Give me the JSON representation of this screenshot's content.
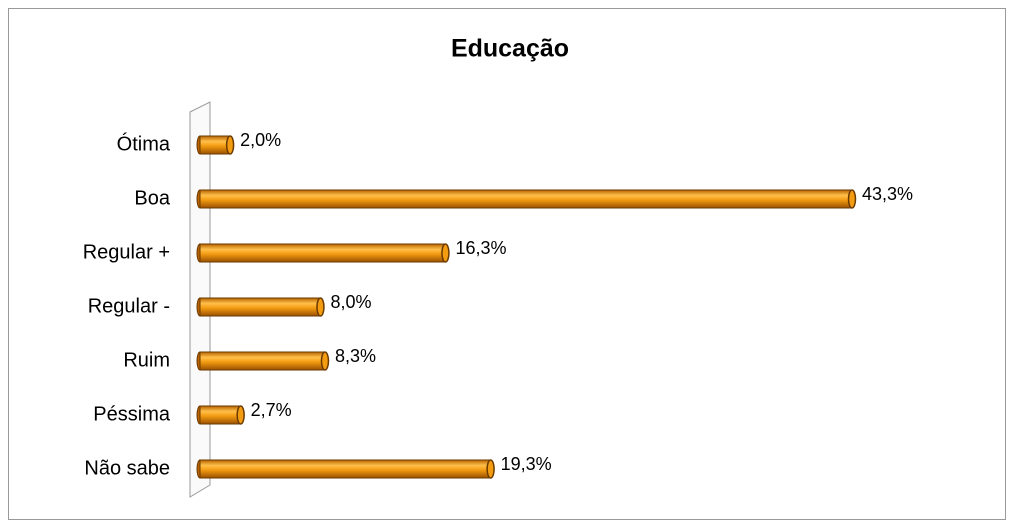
{
  "chart_data": {
    "type": "bar",
    "orientation": "horizontal",
    "title": "Educação",
    "categories": [
      "Ótima",
      "Boa",
      "Regular +",
      "Regular -",
      "Ruim",
      "Péssima",
      "Não sabe"
    ],
    "values": [
      2.0,
      43.3,
      16.3,
      8.0,
      8.3,
      2.7,
      19.3
    ],
    "value_labels": [
      "2,0%",
      "43,3%",
      "16,3%",
      "8,0%",
      "8,3%",
      "2,7%",
      "19,3%"
    ],
    "color": "#f39c12"
  }
}
